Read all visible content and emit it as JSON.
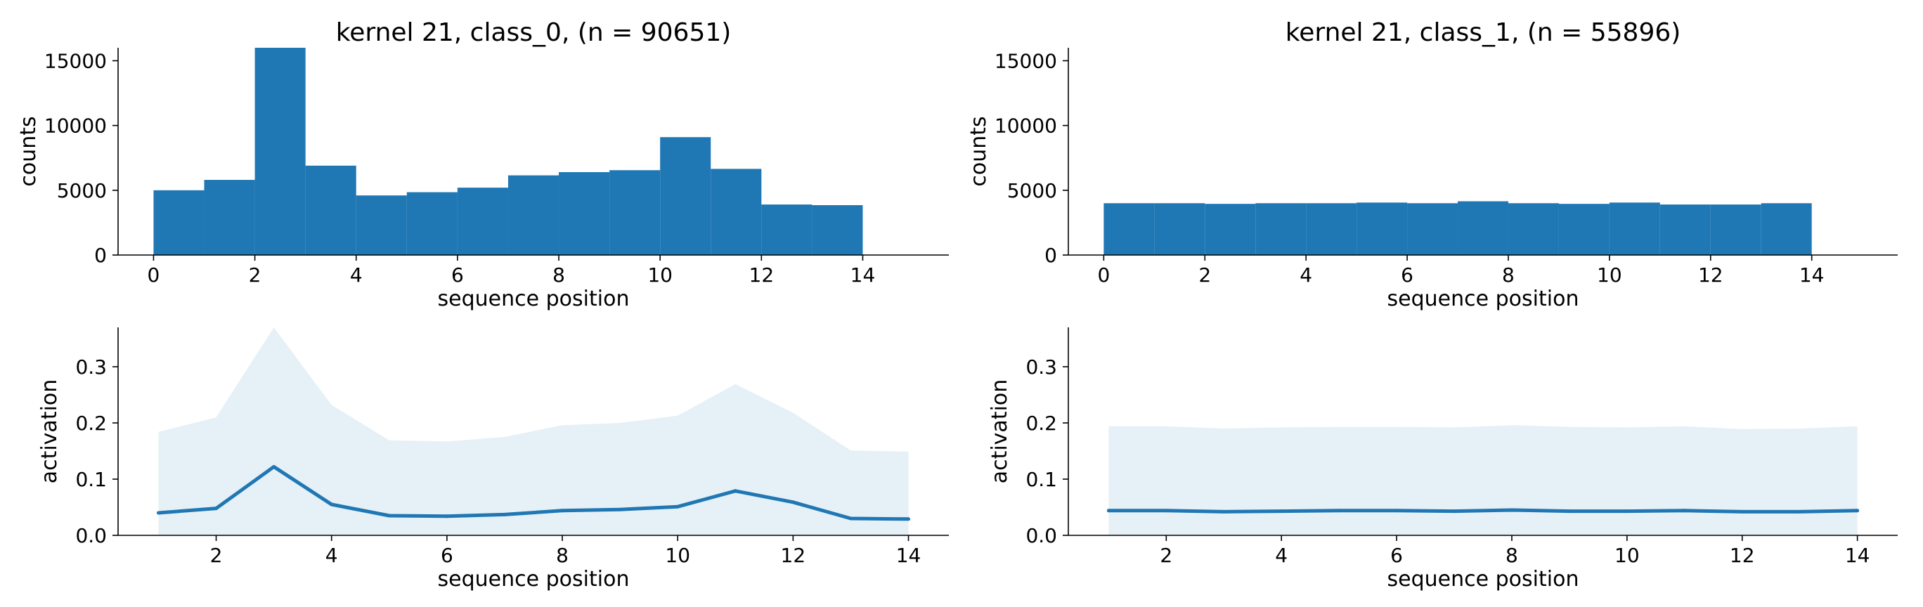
{
  "colors": {
    "bar": "#1f77b4",
    "line": "#1f77b4",
    "band": "#1f77b4",
    "axis": "#000000"
  },
  "chart_data": [
    {
      "type": "bar",
      "title": "kernel 21, class_0, (n = 90651)",
      "xlabel": "sequence position",
      "ylabel": "counts",
      "xlim": [
        -0.7,
        15.7
      ],
      "ylim": [
        0,
        16000
      ],
      "xticks": [
        0,
        2,
        4,
        6,
        8,
        10,
        12,
        14
      ],
      "yticks": [
        0,
        5000,
        10000,
        15000
      ],
      "bin_edges": [
        0,
        1,
        2,
        3,
        4,
        5,
        6,
        7,
        8,
        9,
        10,
        11,
        12,
        13,
        14
      ],
      "values": [
        5000,
        5800,
        16000,
        6900,
        4600,
        4850,
        5200,
        6150,
        6400,
        6550,
        9100,
        6650,
        3900,
        3850
      ],
      "grid": false
    },
    {
      "type": "bar",
      "title": "kernel 21, class_1, (n = 55896)",
      "xlabel": "sequence position",
      "ylabel": "counts",
      "xlim": [
        -0.7,
        15.7
      ],
      "ylim": [
        0,
        16000
      ],
      "xticks": [
        0,
        2,
        4,
        6,
        8,
        10,
        12,
        14
      ],
      "yticks": [
        0,
        5000,
        10000,
        15000
      ],
      "bin_edges": [
        0,
        1,
        2,
        3,
        4,
        5,
        6,
        7,
        8,
        9,
        10,
        11,
        12,
        13,
        14
      ],
      "values": [
        4000,
        4000,
        3950,
        4000,
        4000,
        4050,
        4000,
        4150,
        4000,
        3950,
        4050,
        3900,
        3900,
        4000
      ],
      "grid": false
    },
    {
      "type": "line",
      "title": "",
      "xlabel": "sequence position",
      "ylabel": "activation",
      "xlim": [
        0.3,
        14.7
      ],
      "ylim": [
        0,
        0.37
      ],
      "xticks": [
        2,
        4,
        6,
        8,
        10,
        12,
        14
      ],
      "yticks": [
        0.0,
        0.1,
        0.2,
        0.3
      ],
      "x": [
        1,
        2,
        3,
        4,
        5,
        6,
        7,
        8,
        9,
        10,
        11,
        12,
        13,
        14
      ],
      "y": [
        0.04,
        0.048,
        0.122,
        0.055,
        0.035,
        0.034,
        0.037,
        0.044,
        0.046,
        0.051,
        0.079,
        0.059,
        0.03,
        0.029
      ],
      "band_upper": [
        0.184,
        0.21,
        0.37,
        0.232,
        0.169,
        0.167,
        0.175,
        0.196,
        0.2,
        0.213,
        0.269,
        0.218,
        0.151,
        0.149
      ],
      "band_lower": [
        0,
        0,
        0,
        0,
        0,
        0,
        0,
        0,
        0,
        0,
        0,
        0,
        0,
        0
      ],
      "grid": false
    },
    {
      "type": "line",
      "title": "",
      "xlabel": "sequence position",
      "ylabel": "activation",
      "xlim": [
        0.3,
        14.7
      ],
      "ylim": [
        0,
        0.37
      ],
      "xticks": [
        2,
        4,
        6,
        8,
        10,
        12,
        14
      ],
      "yticks": [
        0.0,
        0.1,
        0.2,
        0.3
      ],
      "x": [
        1,
        2,
        3,
        4,
        5,
        6,
        7,
        8,
        9,
        10,
        11,
        12,
        13,
        14
      ],
      "y": [
        0.044,
        0.044,
        0.042,
        0.043,
        0.044,
        0.044,
        0.043,
        0.045,
        0.043,
        0.043,
        0.044,
        0.042,
        0.042,
        0.044
      ],
      "band_upper": [
        0.194,
        0.194,
        0.19,
        0.192,
        0.193,
        0.193,
        0.192,
        0.196,
        0.193,
        0.192,
        0.194,
        0.189,
        0.19,
        0.194
      ],
      "band_lower": [
        0,
        0,
        0,
        0,
        0,
        0,
        0,
        0,
        0,
        0,
        0,
        0,
        0,
        0
      ],
      "grid": false
    }
  ]
}
